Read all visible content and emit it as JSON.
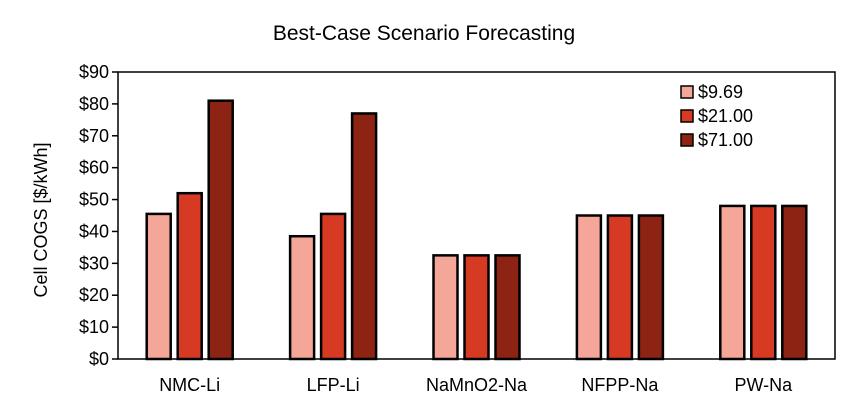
{
  "chart_data": {
    "type": "bar",
    "title": "Best-Case Scenario Forecasting",
    "xlabel": "",
    "ylabel": "Cell COGS [$/kWh]",
    "categories": [
      "NMC-Li",
      "LFP-Li",
      "NaMnO2-Na",
      "NFPP-Na",
      "PW-Na"
    ],
    "series": [
      {
        "name": "$9.69",
        "color": "#f4a699",
        "values": [
          45.5,
          38.5,
          32.5,
          45,
          48
        ]
      },
      {
        "name": "$21.00",
        "color": "#d63a22",
        "values": [
          52,
          45.5,
          32.5,
          45,
          48
        ]
      },
      {
        "name": "$71.00",
        "color": "#8c2313",
        "values": [
          81,
          77,
          32.5,
          45,
          48
        ]
      }
    ],
    "ylim": [
      0,
      90
    ],
    "yticks": [
      0,
      10,
      20,
      30,
      40,
      50,
      60,
      70,
      80,
      90
    ],
    "ytick_labels": [
      "$0",
      "$10",
      "$20",
      "$30",
      "$40",
      "$50",
      "$60",
      "$70",
      "$80",
      "$90"
    ],
    "grid": false,
    "legend_position": "top-right"
  }
}
